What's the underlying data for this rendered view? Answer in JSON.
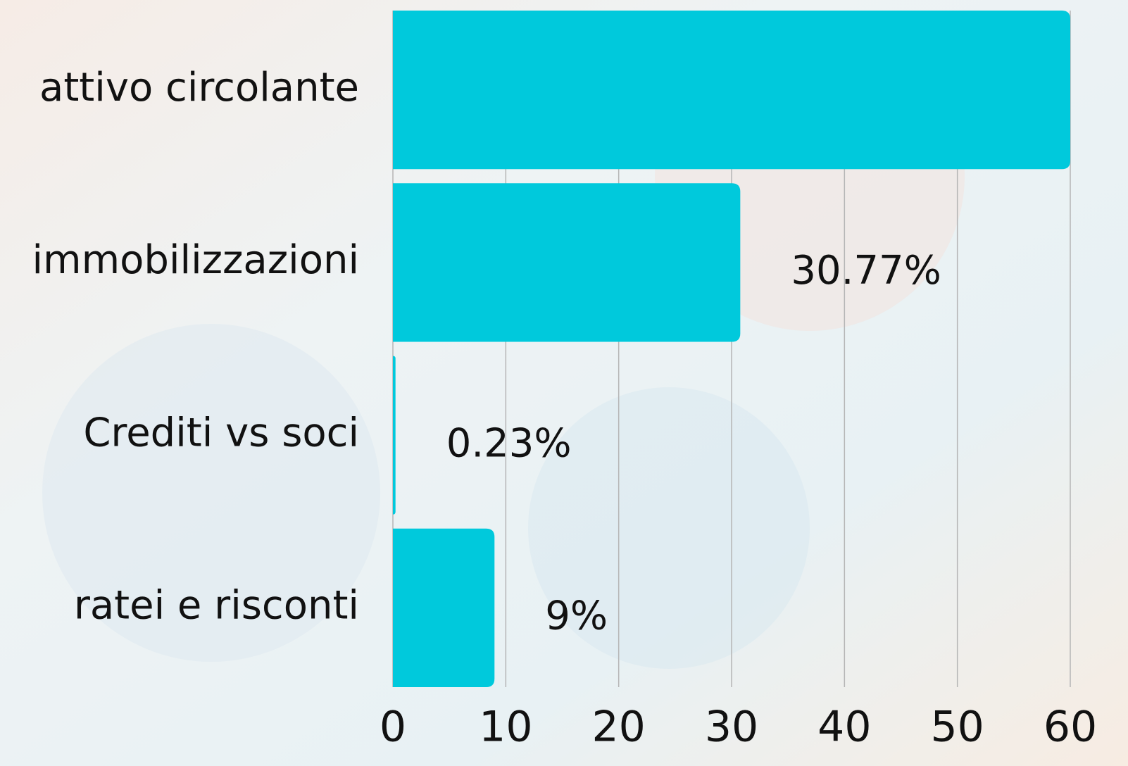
{
  "chart_data": {
    "type": "bar",
    "orientation": "horizontal",
    "categories": [
      "attivo circolante",
      "immobilizzazioni",
      "Crediti vs soci",
      "ratei e risconti"
    ],
    "values": [
      60,
      30.77,
      0.23,
      9
    ],
    "value_labels": [
      null,
      "30.77%",
      "0.23%",
      "9%"
    ],
    "color": "#00c9dc",
    "xlim": [
      0,
      60
    ],
    "xticks": [
      0,
      10,
      20,
      30,
      40,
      50,
      60
    ],
    "grid": true
  }
}
